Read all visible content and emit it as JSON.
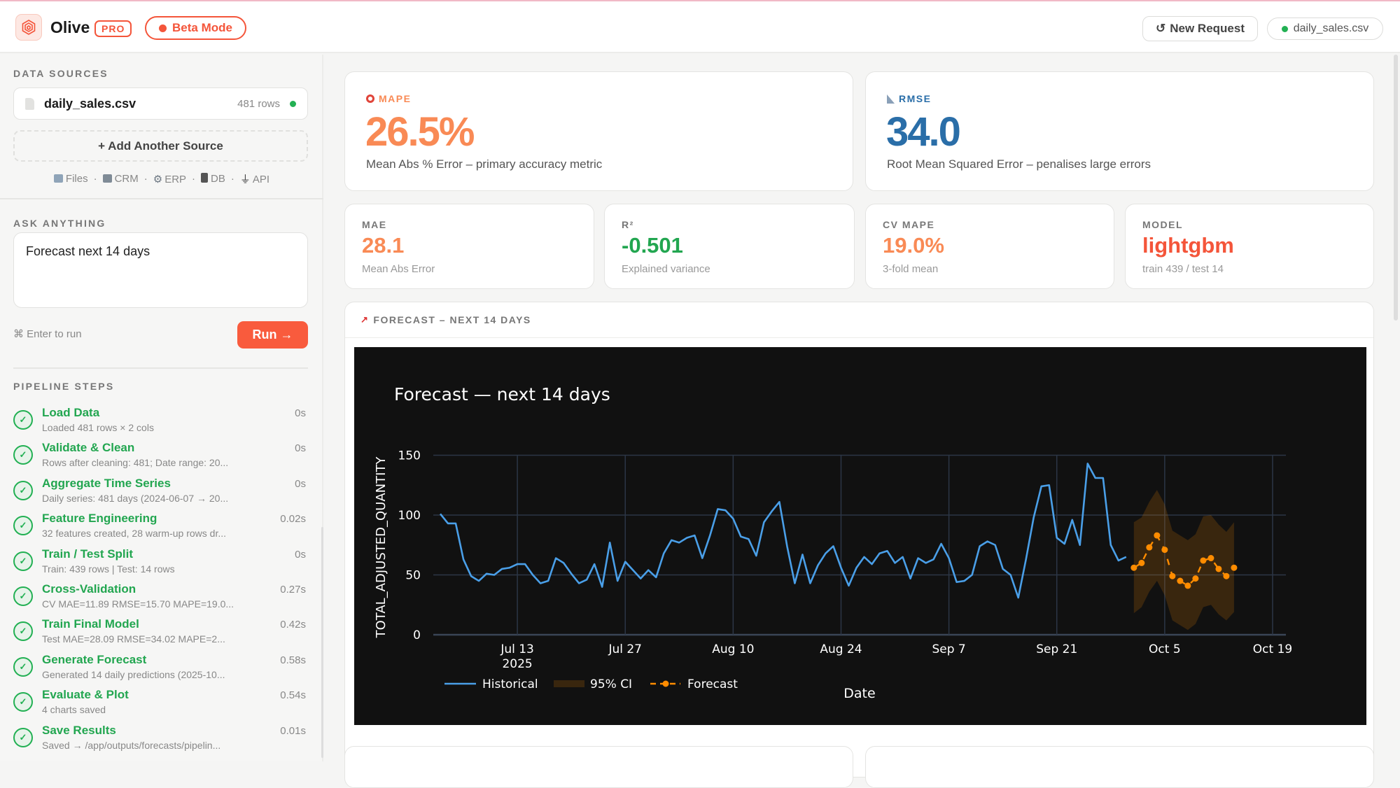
{
  "header": {
    "brand": "Olive",
    "pro_badge": "PRO",
    "beta_label": "Beta Mode",
    "new_request": "New Request",
    "active_file": "daily_sales.csv",
    "colors": {
      "accent": "#f4553a",
      "ok": "#22b053"
    }
  },
  "sidebar": {
    "data_sources_title": "DATA SOURCES",
    "file": {
      "name": "daily_sales.csv",
      "rows": "481 rows"
    },
    "add_source": "+ Add Another Source",
    "source_types": [
      "Files",
      "CRM",
      "ERP",
      "DB",
      "API"
    ],
    "ask_title": "ASK ANYTHING",
    "prompt": "Forecast next 14 days",
    "hint": "⌘ Enter to run",
    "run": "Run →",
    "pipeline_title": "PIPELINE STEPS",
    "steps": [
      {
        "name": "Load Data",
        "detail": "Loaded 481 rows × 2 cols",
        "time": "0s"
      },
      {
        "name": "Validate & Clean",
        "detail": "Rows after cleaning: 481; Date range: 20...",
        "time": "0s"
      },
      {
        "name": "Aggregate Time Series",
        "detail": "Daily series: 481 days (2024-06-07 → 20...",
        "time": "0s"
      },
      {
        "name": "Feature Engineering",
        "detail": "32 features created, 28 warm-up rows dr...",
        "time": "0.02s"
      },
      {
        "name": "Train / Test Split",
        "detail": "Train: 439 rows | Test: 14 rows",
        "time": "0s"
      },
      {
        "name": "Cross-Validation",
        "detail": "CV MAE=11.89 RMSE=15.70 MAPE=19.0...",
        "time": "0.27s"
      },
      {
        "name": "Train Final Model",
        "detail": "Test MAE=28.09 RMSE=34.02 MAPE=2...",
        "time": "0.42s"
      },
      {
        "name": "Generate Forecast",
        "detail": "Generated 14 daily predictions (2025-10...",
        "time": "0.58s"
      },
      {
        "name": "Evaluate & Plot",
        "detail": "4 charts saved",
        "time": "0.54s"
      },
      {
        "name": "Save Results",
        "detail": "Saved → /app/outputs/forecasts/pipelin...",
        "time": "0.01s"
      }
    ]
  },
  "metrics": {
    "mape": {
      "label": "MAPE",
      "value": "26.5%",
      "desc": "Mean Abs % Error – primary accuracy metric",
      "color": "#f98a55"
    },
    "rmse": {
      "label": "RMSE",
      "value": "34.0",
      "desc": "Root Mean Squared Error – penalises large errors",
      "color": "#2a6ea8"
    },
    "mae": {
      "label": "MAE",
      "value": "28.1",
      "desc": "Mean Abs Error",
      "color": "#f98a55"
    },
    "r2": {
      "label": "R²",
      "value": "-0.501",
      "desc": "Explained variance",
      "color": "#22a650"
    },
    "cv_mape": {
      "label": "CV MAPE",
      "value": "19.0%",
      "desc": "3-fold mean",
      "color": "#f98a55"
    },
    "model": {
      "label": "MODEL",
      "value": "lightgbm",
      "desc": "train 439 / test 14",
      "color": "#f4553a"
    }
  },
  "panel": {
    "title": "FORECAST – NEXT 14 DAYS"
  },
  "chart_data": {
    "type": "line",
    "title": "Forecast — next 14 days",
    "xlabel": "Date",
    "ylabel": "TOTAL_ADJUSTED_QUANTITY",
    "ylim": [
      0,
      150
    ],
    "xlim": [
      "2025-07-03",
      "2025-10-20"
    ],
    "yticks": [
      0,
      50,
      100,
      150
    ],
    "xticks": [
      {
        "date": "2025-07-13",
        "label": "Jul 13"
      },
      {
        "date": "2025-07-27",
        "label": "Jul 27"
      },
      {
        "date": "2025-08-10",
        "label": "Aug 10"
      },
      {
        "date": "2025-08-24",
        "label": "Aug 24"
      },
      {
        "date": "2025-09-07",
        "label": "Sep 7"
      },
      {
        "date": "2025-09-21",
        "label": "Sep 21"
      },
      {
        "date": "2025-10-05",
        "label": "Oct 5"
      },
      {
        "date": "2025-10-19",
        "label": "Oct 19"
      }
    ],
    "year_label": "2025",
    "grid": true,
    "legend": {
      "placement": "bottom-left",
      "items": [
        "Historical",
        "95% CI",
        "Forecast"
      ]
    },
    "historical": {
      "name": "Historical",
      "color": "#4a9fe8",
      "start": "2025-07-03",
      "values": [
        101,
        93,
        93,
        63,
        49,
        45,
        51,
        50,
        55,
        56,
        59,
        59,
        50,
        43,
        45,
        64,
        60,
        51,
        43,
        46,
        59,
        40,
        77,
        45,
        61,
        54,
        47,
        54,
        48,
        68,
        79,
        77,
        81,
        83,
        64,
        83,
        105,
        104,
        97,
        82,
        80,
        66,
        94,
        103,
        111,
        74,
        43,
        67,
        43,
        58,
        68,
        74,
        56,
        41,
        56,
        65,
        59,
        68,
        70,
        60,
        65,
        47,
        64,
        60,
        63,
        76,
        64,
        44,
        45,
        50,
        74,
        78,
        75,
        55,
        50,
        31,
        63,
        98,
        124,
        125,
        81,
        76,
        96,
        75,
        143,
        131,
        131,
        75,
        62,
        65
      ]
    },
    "forecast": {
      "name": "Forecast",
      "color": "#ff8c00",
      "start": "2025-10-01",
      "values": [
        56,
        60,
        73,
        83,
        71,
        49,
        45,
        41,
        47,
        62,
        64,
        55,
        49,
        56
      ],
      "upper": [
        94,
        98,
        111,
        121,
        109,
        87,
        83,
        79,
        84,
        99,
        100,
        92,
        86,
        94
      ],
      "lower": [
        18,
        23,
        36,
        45,
        33,
        12,
        8,
        4,
        9,
        23,
        25,
        17,
        12,
        19
      ]
    }
  }
}
